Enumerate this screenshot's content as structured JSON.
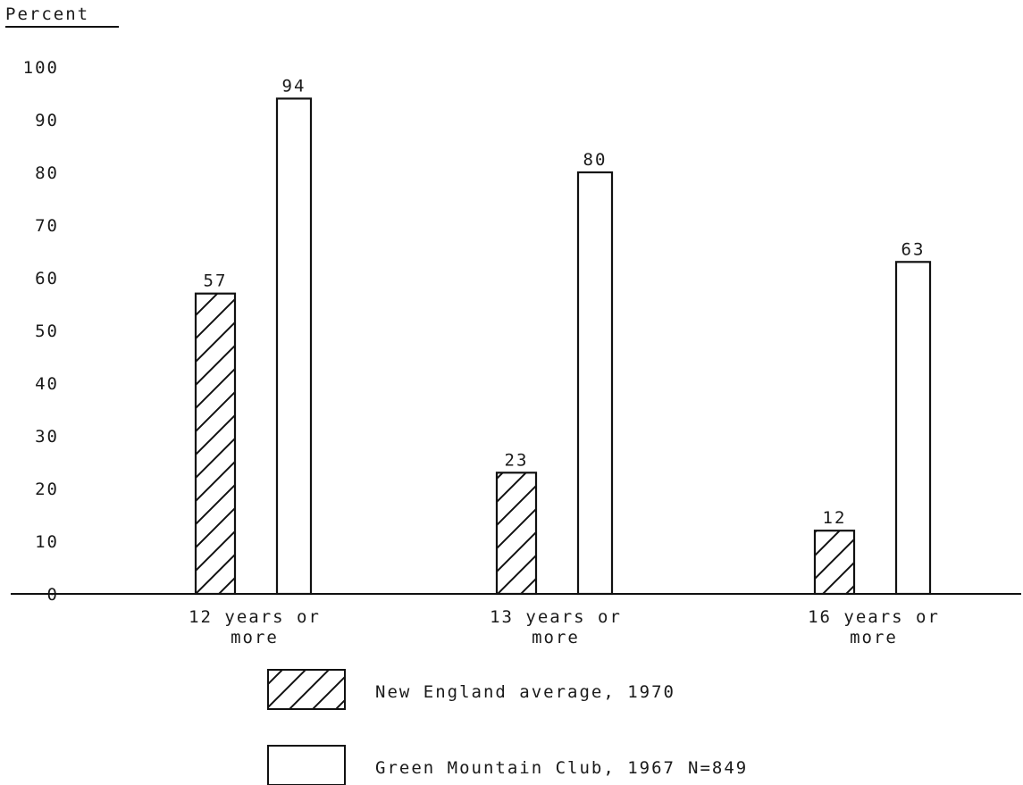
{
  "chart_data": {
    "type": "bar",
    "ylabel": "Percent",
    "ylim": [
      0,
      100
    ],
    "yticks": [
      0,
      10,
      20,
      30,
      40,
      50,
      60,
      70,
      80,
      90,
      100
    ],
    "categories": [
      [
        "12 years or",
        "more"
      ],
      [
        "13 years or",
        "more"
      ],
      [
        "16 years or",
        "more"
      ]
    ],
    "series": [
      {
        "name": "New England average, 1970",
        "values": [
          57,
          23,
          12
        ],
        "pattern": "hatched"
      },
      {
        "name": "Green Mountain Club, 1967",
        "values": [
          94,
          80,
          63
        ],
        "pattern": "open"
      }
    ],
    "annotation": "N=849",
    "grid": false,
    "legend_position": "bottom"
  }
}
